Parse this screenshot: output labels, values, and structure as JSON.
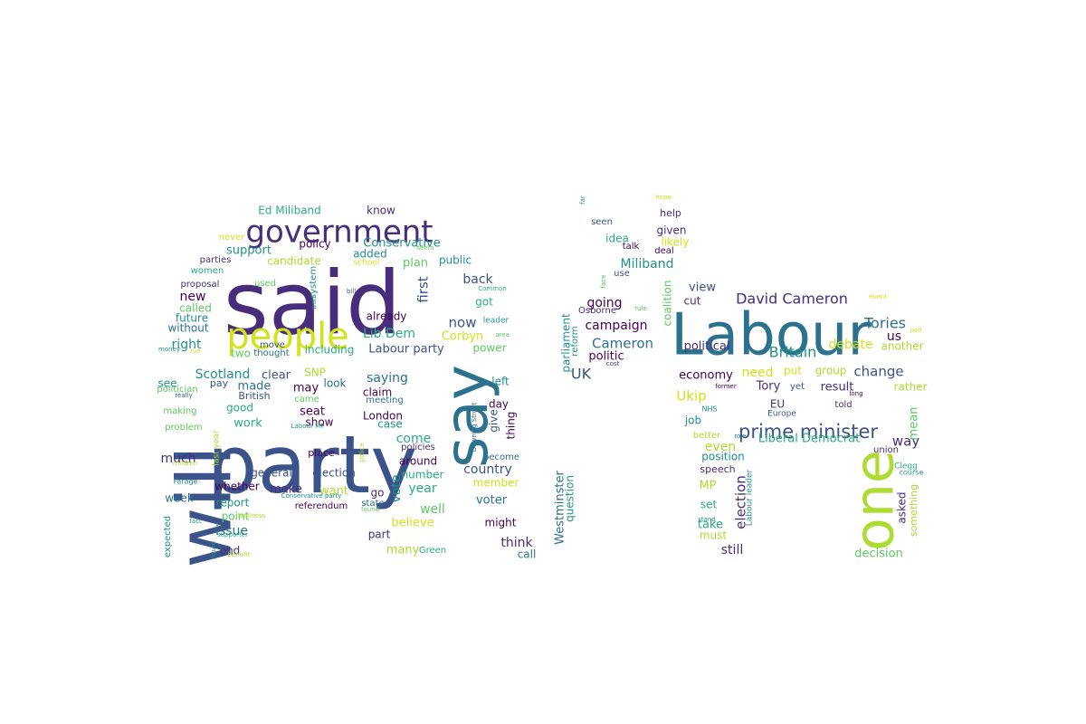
{
  "palette": {
    "dark_purple": "#440154",
    "purple": "#472d7b",
    "indigo": "#3b528b",
    "blue": "#2c728e",
    "teal": "#21918c",
    "green_teal": "#28ae80",
    "green": "#5ec962",
    "lime": "#addc30",
    "yellow": "#d2e21b",
    "gray_blue": "#355f8d"
  },
  "words": [
    {
      "text": "said"
    },
    {
      "text": "party"
    },
    {
      "text": "Labour"
    },
    {
      "text": "will"
    },
    {
      "text": "say"
    },
    {
      "text": "one"
    },
    {
      "text": "people"
    },
    {
      "text": "government"
    },
    {
      "text": "prime minister"
    },
    {
      "text": "David Cameron"
    },
    {
      "text": "Britain"
    },
    {
      "text": "Tories"
    },
    {
      "text": "Cameron"
    },
    {
      "text": "Miliband"
    },
    {
      "text": "campaign"
    },
    {
      "text": "going"
    },
    {
      "text": "politic"
    },
    {
      "text": "UK"
    },
    {
      "text": "Ed Miliband"
    },
    {
      "text": "know"
    },
    {
      "text": "policy"
    },
    {
      "text": "Conservative"
    },
    {
      "text": "support"
    },
    {
      "text": "candidate"
    },
    {
      "text": "plan"
    },
    {
      "text": "public"
    },
    {
      "text": "added"
    },
    {
      "text": "back"
    },
    {
      "text": "first"
    },
    {
      "text": "new"
    },
    {
      "text": "now"
    },
    {
      "text": "got"
    },
    {
      "text": "Lib Dem"
    },
    {
      "text": "Corbyn"
    },
    {
      "text": "Labour party"
    },
    {
      "text": "power"
    },
    {
      "text": "already"
    },
    {
      "text": "including"
    },
    {
      "text": "right"
    },
    {
      "text": "called"
    },
    {
      "text": "future"
    },
    {
      "text": "without"
    },
    {
      "text": "two"
    },
    {
      "text": "Scotland"
    },
    {
      "text": "clear"
    },
    {
      "text": "SNP"
    },
    {
      "text": "saying"
    },
    {
      "text": "left"
    },
    {
      "text": "made"
    },
    {
      "text": "may"
    },
    {
      "text": "look"
    },
    {
      "text": "claim"
    },
    {
      "text": "see"
    },
    {
      "text": "pay"
    },
    {
      "text": "British"
    },
    {
      "text": "came"
    },
    {
      "text": "meeting"
    },
    {
      "text": "day"
    },
    {
      "text": "good"
    },
    {
      "text": "seat"
    },
    {
      "text": "show"
    },
    {
      "text": "London"
    },
    {
      "text": "case"
    },
    {
      "text": "give"
    },
    {
      "text": "thing"
    },
    {
      "text": "work"
    },
    {
      "text": "come"
    },
    {
      "text": "around"
    },
    {
      "text": "much"
    },
    {
      "text": "general"
    },
    {
      "text": "election"
    },
    {
      "text": "country"
    },
    {
      "text": "make"
    },
    {
      "text": "want"
    },
    {
      "text": "vote"
    },
    {
      "text": "year"
    },
    {
      "text": "number"
    },
    {
      "text": "whether"
    },
    {
      "text": "referendum"
    },
    {
      "text": "week"
    },
    {
      "text": "report"
    },
    {
      "text": "go"
    },
    {
      "text": "well"
    },
    {
      "text": "voter"
    },
    {
      "text": "point"
    },
    {
      "text": "believe"
    },
    {
      "text": "might"
    },
    {
      "text": "issue"
    },
    {
      "text": "part"
    },
    {
      "text": "many"
    },
    {
      "text": "think"
    },
    {
      "text": "end"
    },
    {
      "text": "Green"
    },
    {
      "text": "call"
    },
    {
      "text": "state"
    },
    {
      "text": "member"
    },
    {
      "text": "policies"
    },
    {
      "text": "become"
    },
    {
      "text": "place"
    },
    {
      "text": "parties"
    },
    {
      "text": "women"
    },
    {
      "text": "proposal"
    },
    {
      "text": "used"
    },
    {
      "text": "never"
    },
    {
      "text": "school"
    },
    {
      "text": "seem"
    },
    {
      "text": "system"
    },
    {
      "text": "bill"
    },
    {
      "text": "Common"
    },
    {
      "text": "leader"
    },
    {
      "text": "area"
    },
    {
      "text": "move"
    },
    {
      "text": "thought"
    },
    {
      "text": "money"
    },
    {
      "text": "run"
    },
    {
      "text": "politician"
    },
    {
      "text": "really"
    },
    {
      "text": "making"
    },
    {
      "text": "problem"
    },
    {
      "text": "children"
    },
    {
      "text": "Farage"
    },
    {
      "text": "fact"
    },
    {
      "text": "business"
    },
    {
      "text": "supporter"
    },
    {
      "text": "figure"
    },
    {
      "text": "benefit"
    },
    {
      "text": "expected"
    },
    {
      "text": "last year"
    },
    {
      "text": "Labour MP"
    },
    {
      "text": "won"
    },
    {
      "text": "Conservative party"
    },
    {
      "text": "found"
    },
    {
      "text": "police"
    },
    {
      "text": "Downing Street"
    },
    {
      "text": "Westminster"
    },
    {
      "text": "question"
    },
    {
      "text": "parliament"
    },
    {
      "text": "reform"
    },
    {
      "text": "Osborne"
    },
    {
      "text": "cost"
    },
    {
      "text": "coalition"
    },
    {
      "text": "view"
    },
    {
      "text": "cut"
    },
    {
      "text": "political"
    },
    {
      "text": "debate"
    },
    {
      "text": "another"
    },
    {
      "text": "us"
    },
    {
      "text": "economy"
    },
    {
      "text": "need"
    },
    {
      "text": "put"
    },
    {
      "text": "group"
    },
    {
      "text": "change"
    },
    {
      "text": "Ukip"
    },
    {
      "text": "Tory"
    },
    {
      "text": "yet"
    },
    {
      "text": "result"
    },
    {
      "text": "rather"
    },
    {
      "text": "EU"
    },
    {
      "text": "told"
    },
    {
      "text": "long"
    },
    {
      "text": "former"
    },
    {
      "text": "Europe"
    },
    {
      "text": "NHS"
    },
    {
      "text": "job"
    },
    {
      "text": "Liberal Democrat"
    },
    {
      "text": "better"
    },
    {
      "text": "role"
    },
    {
      "text": "way"
    },
    {
      "text": "even"
    },
    {
      "text": "position"
    },
    {
      "text": "union"
    },
    {
      "text": "mean"
    },
    {
      "text": "speech"
    },
    {
      "text": "Clegg"
    },
    {
      "text": "course"
    },
    {
      "text": "MP"
    },
    {
      "text": "election"
    },
    {
      "text": "Labour leader"
    },
    {
      "text": "stand"
    },
    {
      "text": "set"
    },
    {
      "text": "asked"
    },
    {
      "text": "something"
    },
    {
      "text": "take"
    },
    {
      "text": "must"
    },
    {
      "text": "still"
    },
    {
      "text": "decision"
    },
    {
      "text": "far"
    },
    {
      "text": "hope"
    },
    {
      "text": "help"
    },
    {
      "text": "seen"
    },
    {
      "text": "given"
    },
    {
      "text": "idea"
    },
    {
      "text": "talk"
    },
    {
      "text": "likely"
    },
    {
      "text": "deal"
    },
    {
      "text": "use"
    },
    {
      "text": "face"
    },
    {
      "text": "rule"
    },
    {
      "text": "event"
    },
    {
      "text": "poll"
    }
  ]
}
